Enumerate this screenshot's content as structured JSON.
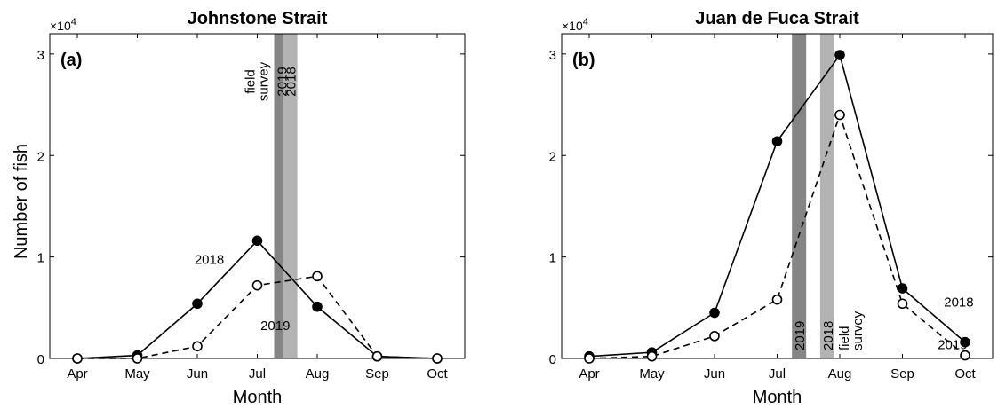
{
  "ylabel": "Number of fish",
  "xlabel": "Month",
  "exponent_base": "×10",
  "exponent_power": "4",
  "months": [
    "Apr",
    "May",
    "Jun",
    "Jul",
    "Aug",
    "Sep",
    "Oct"
  ],
  "y_ticks": [
    "0",
    "1",
    "2",
    "3"
  ],
  "survey_label_1": "field",
  "survey_label_2": "survey",
  "chart_data": [
    {
      "type": "line",
      "title": "Johnstone Strait",
      "panel_label": "(a)",
      "xlabel": "Month",
      "ylabel": "Number of fish",
      "categories": [
        "Apr",
        "May",
        "Jun",
        "Jul",
        "Aug",
        "Sep",
        "Oct"
      ],
      "ylim": [
        0,
        32000
      ],
      "y_multiplier": "×10^4",
      "series": [
        {
          "name": "2018",
          "style": "solid, filled markers",
          "values": [
            0,
            300,
            5400,
            11600,
            5100,
            200,
            0
          ]
        },
        {
          "name": "2019",
          "style": "dashed, open markers",
          "values": [
            0,
            0,
            1200,
            7200,
            8100,
            200,
            0
          ]
        }
      ],
      "survey_bands": [
        {
          "label": "2019",
          "month": 3.4,
          "color": "#858585"
        },
        {
          "label": "2018",
          "month": 3.55,
          "color": "#b3b3b3"
        }
      ],
      "series_label_positions": [
        [
          2.2,
          9300
        ],
        [
          3.3,
          2800
        ]
      ]
    },
    {
      "type": "line",
      "title": "Juan de Fuca Strait",
      "panel_label": "(b)",
      "xlabel": "Month",
      "ylabel": "",
      "categories": [
        "Apr",
        "May",
        "Jun",
        "Jul",
        "Aug",
        "Sep",
        "Oct"
      ],
      "ylim": [
        0,
        32000
      ],
      "y_multiplier": "×10^4",
      "series": [
        {
          "name": "2018",
          "style": "solid, filled markers",
          "values": [
            200,
            600,
            4500,
            21400,
            29900,
            6900,
            1600
          ]
        },
        {
          "name": "2019",
          "style": "dashed, open markers",
          "values": [
            0,
            200,
            2200,
            5800,
            24000,
            5400,
            300
          ]
        }
      ],
      "survey_bands": [
        {
          "label": "2019",
          "month": 3.35,
          "color": "#858585"
        },
        {
          "label": "2018",
          "month": 3.8,
          "color": "#b3b3b3"
        }
      ],
      "series_label_positions": [
        [
          5.9,
          5100
        ],
        [
          5.8,
          900
        ]
      ]
    }
  ]
}
